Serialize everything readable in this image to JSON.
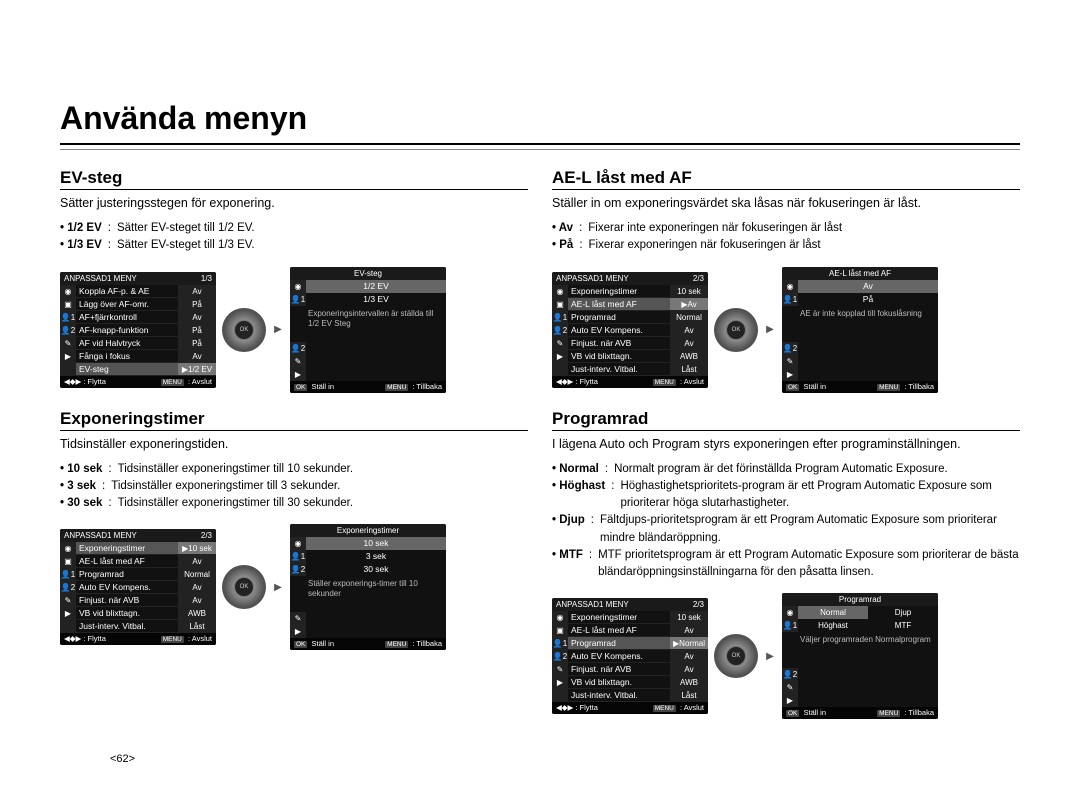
{
  "page_title": "Använda menyn",
  "pagenum": "<62>",
  "colors": {
    "text": "#000000",
    "bg": "#ffffff",
    "screen_bg": "#111111",
    "screen_text": "#ffffff",
    "screen_sel": "#555555"
  },
  "left": {
    "sec1": {
      "title": "EV-steg",
      "desc": "Sätter justeringsstegen för exponering.",
      "bullets": [
        {
          "label": "1/2 EV",
          "desc": "Sätter EV-steget till 1/2 EV."
        },
        {
          "label": "1/3 EV",
          "desc": "Sätter EV-steget till 1/3 EV."
        }
      ],
      "menu": {
        "hdr_l": "ANPASSAD1 MENY",
        "hdr_r": "1/3",
        "rows": [
          {
            "icon": "◉",
            "label": "Koppla AF-p. & AE",
            "val": "Av"
          },
          {
            "icon": "▣",
            "label": "Lägg över AF-omr.",
            "val": "På"
          },
          {
            "icon": "👤1",
            "label": "AF+fjärrkontroll",
            "val": "Av"
          },
          {
            "icon": "👤2",
            "label": "AF-knapp-funktion",
            "val": "På"
          },
          {
            "icon": "✎",
            "label": "AF vid Halvtryck",
            "val": "På"
          },
          {
            "icon": "▶",
            "label": "Fånga i fokus",
            "val": "Av"
          },
          {
            "icon": "",
            "label": "EV-steg",
            "val": "▶1/2 EV",
            "sel": true
          }
        ],
        "ftr_l": "◀◆▶ : Flytta",
        "ftr_r": "MENU : Avslut"
      },
      "sub": {
        "hdr": "EV-steg",
        "opts": [
          {
            "icon": "◉",
            "txt": "1/2 EV",
            "sel": true
          },
          {
            "icon": "👤1",
            "txt": "1/3 EV"
          }
        ],
        "extra_icons": [
          "👤2",
          "✎",
          "▶"
        ],
        "msg": "Exponeringsintervallen är ställda till 1/2 EV Steg",
        "ftr_l": "OK Ställ in",
        "ftr_r": "MENU : Tillbaka"
      }
    },
    "sec2": {
      "title": "Exponeringstimer",
      "desc": "Tidsinställer exponeringstiden.",
      "bullets": [
        {
          "label": "10 sek",
          "desc": "Tidsinställer exponeringstimer till 10 sekunder."
        },
        {
          "label": "3 sek",
          "desc": "Tidsinställer exponeringstimer till 3 sekunder."
        },
        {
          "label": "30 sek",
          "desc": "Tidsinställer exponeringstimer till 30 sekunder."
        }
      ],
      "menu": {
        "hdr_l": "ANPASSAD1 MENY",
        "hdr_r": "2/3",
        "rows": [
          {
            "icon": "◉",
            "label": "Exponeringstimer",
            "val": "▶10 sek",
            "sel": true
          },
          {
            "icon": "▣",
            "label": "AE-L låst med AF",
            "val": "Av"
          },
          {
            "icon": "👤1",
            "label": "Programrad",
            "val": "Normal"
          },
          {
            "icon": "👤2",
            "label": "Auto EV Kompens.",
            "val": "Av"
          },
          {
            "icon": "✎",
            "label": "Finjust. när AVB",
            "val": "Av"
          },
          {
            "icon": "▶",
            "label": "VB vid blixttagn.",
            "val": "AWB"
          },
          {
            "icon": "",
            "label": "Just-interv. Vitbal.",
            "val": "Låst"
          }
        ],
        "ftr_l": "◀◆▶ : Flytta",
        "ftr_r": "MENU : Avslut"
      },
      "sub": {
        "hdr": "Exponeringstimer",
        "opts": [
          {
            "icon": "◉",
            "txt": "10 sek",
            "sel": true
          },
          {
            "icon": "👤1",
            "txt": "3 sek"
          },
          {
            "icon": "👤2",
            "txt": "30 sek"
          }
        ],
        "extra_icons": [
          "✎",
          "▶"
        ],
        "msg": "Ställer exponerings-timer till 10 sekunder",
        "ftr_l": "OK Ställ in",
        "ftr_r": "MENU : Tillbaka"
      }
    }
  },
  "right": {
    "sec1": {
      "title": "AE-L låst med AF",
      "desc": "Ställer in om exponeringsvärdet ska låsas när fokuseringen är låst.",
      "bullets": [
        {
          "label": "Av",
          "desc": "Fixerar inte exponeringen när fokuseringen är låst"
        },
        {
          "label": "På",
          "desc": "Fixerar exponeringen när fokuseringen är låst"
        }
      ],
      "menu": {
        "hdr_l": "ANPASSAD1 MENY",
        "hdr_r": "2/3",
        "rows": [
          {
            "icon": "◉",
            "label": "Exponeringstimer",
            "val": "10 sek"
          },
          {
            "icon": "▣",
            "label": "AE-L låst med AF",
            "val": "▶Av",
            "sel": true
          },
          {
            "icon": "👤1",
            "label": "Programrad",
            "val": "Normal"
          },
          {
            "icon": "👤2",
            "label": "Auto EV Kompens.",
            "val": "Av"
          },
          {
            "icon": "✎",
            "label": "Finjust. när AVB",
            "val": "Av"
          },
          {
            "icon": "▶",
            "label": "VB vid blixttagn.",
            "val": "AWB"
          },
          {
            "icon": "",
            "label": "Just-interv. Vitbal.",
            "val": "Låst"
          }
        ],
        "ftr_l": "◀◆▶ : Flytta",
        "ftr_r": "MENU : Avslut"
      },
      "sub": {
        "hdr": "AE-L låst med AF",
        "opts": [
          {
            "icon": "◉",
            "txt": "Av",
            "sel": true
          },
          {
            "icon": "👤1",
            "txt": "På"
          }
        ],
        "extra_icons": [
          "👤2",
          "✎",
          "▶"
        ],
        "msg": "AE är inte kopplad till fokuslåsning",
        "ftr_l": "OK Ställ in",
        "ftr_r": "MENU : Tillbaka"
      }
    },
    "sec2": {
      "title": "Programrad",
      "desc": "I lägena Auto och Program styrs exponeringen efter programinställningen.",
      "bullets": [
        {
          "label": "Normal",
          "desc": "Normalt program är det förinställda Program Automatic Exposure."
        },
        {
          "label": "Höghast",
          "desc": "Höghastighetsprioritets-program är ett Program Automatic Exposure som prioriterar höga slutarhastigheter."
        },
        {
          "label": "Djup",
          "desc": "Fältdjups-prioritetsprogram är ett Program Automatic Exposure som prioriterar mindre bländaröppning."
        },
        {
          "label": "MTF",
          "desc": "MTF prioritetsprogram är ett Program Automatic Exposure som prioriterar de bästa bländaröppningsinställningarna för den påsatta linsen."
        }
      ],
      "menu": {
        "hdr_l": "ANPASSAD1 MENY",
        "hdr_r": "2/3",
        "rows": [
          {
            "icon": "◉",
            "label": "Exponeringstimer",
            "val": "10 sek"
          },
          {
            "icon": "▣",
            "label": "AE-L låst med AF",
            "val": "Av"
          },
          {
            "icon": "👤1",
            "label": "Programrad",
            "val": "▶Normal",
            "sel": true
          },
          {
            "icon": "👤2",
            "label": "Auto EV Kompens.",
            "val": "Av"
          },
          {
            "icon": "✎",
            "label": "Finjust. när AVB",
            "val": "Av"
          },
          {
            "icon": "▶",
            "label": "VB vid blixttagn.",
            "val": "AWB"
          },
          {
            "icon": "",
            "label": "Just-interv. Vitbal.",
            "val": "Låst"
          }
        ],
        "ftr_l": "◀◆▶ : Flytta",
        "ftr_r": "MENU : Avslut"
      },
      "sub": {
        "hdr": "Programrad",
        "grid": [
          {
            "txt": "Normal",
            "sel": true
          },
          {
            "txt": "Djup"
          },
          {
            "txt": "Höghast"
          },
          {
            "txt": "MTF"
          }
        ],
        "grid_icons": [
          "◉",
          "👤1"
        ],
        "extra_icons": [
          "👤2",
          "✎",
          "▶"
        ],
        "msg": "Väljer programraden Normalprogram",
        "ftr_l": "OK Ställ in",
        "ftr_r": "MENU : Tillbaka"
      }
    }
  }
}
